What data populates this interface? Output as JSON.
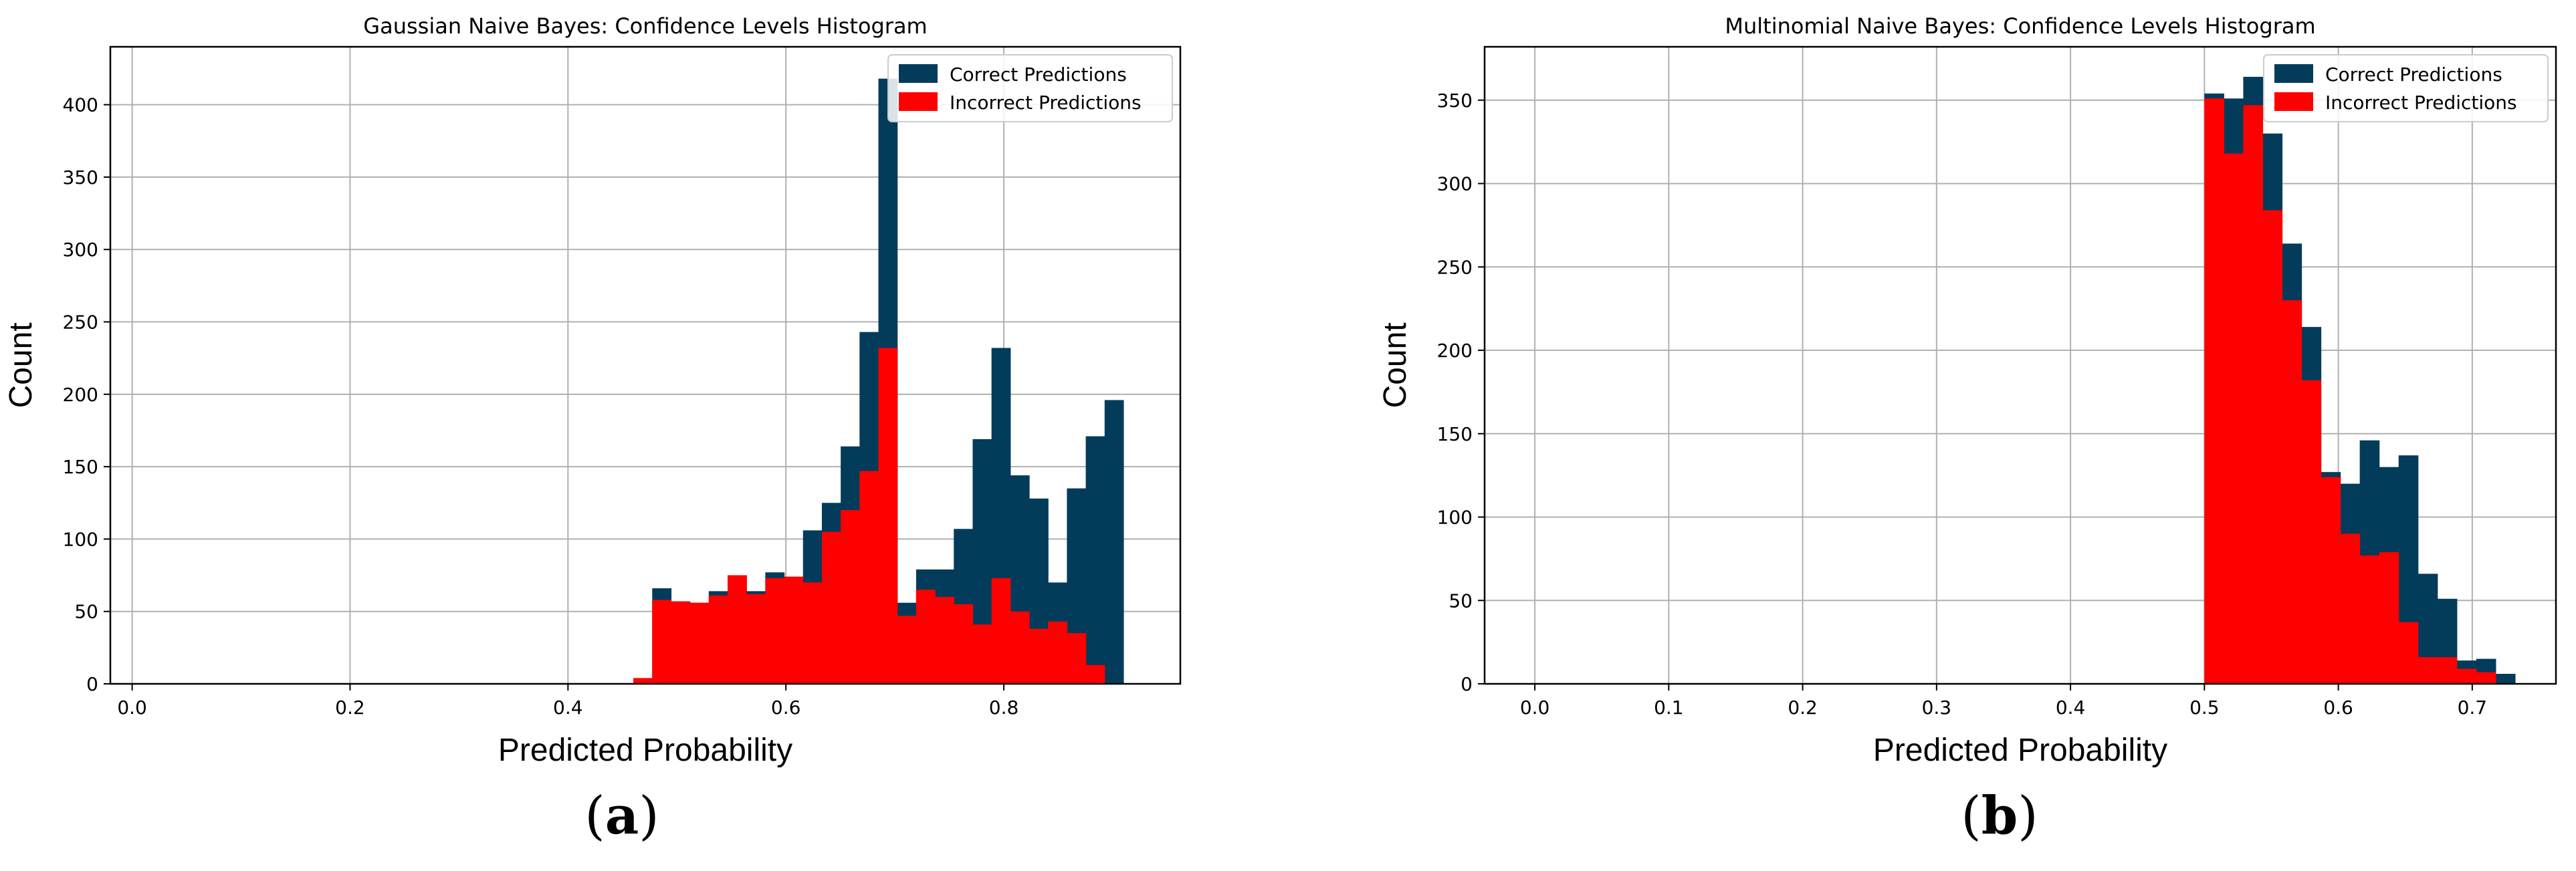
{
  "figure_labels": {
    "a": "a",
    "b": "b"
  },
  "colors": {
    "correct": "#033c5a",
    "incorrect": "#ff0000",
    "grid": "#b0b0b0",
    "axis": "#000000"
  },
  "chart_data": [
    {
      "type": "bar",
      "subtype": "histogram-overlay",
      "title": "Gaussian Naive Bayes: Confidence Levels Histogram",
      "xlabel": "Predicted Probability",
      "ylabel": "Count",
      "xlim": [
        -0.02,
        0.962
      ],
      "ylim": [
        0,
        440
      ],
      "xticks": [
        0.0,
        0.2,
        0.4,
        0.6,
        0.8
      ],
      "xtick_labels": [
        "0.0",
        "0.2",
        "0.4",
        "0.6",
        "0.8"
      ],
      "yticks": [
        0,
        50,
        100,
        150,
        200,
        250,
        300,
        350,
        400
      ],
      "ytick_labels": [
        "0",
        "50",
        "100",
        "150",
        "200",
        "250",
        "300",
        "350",
        "400"
      ],
      "grid": true,
      "legend_position": "top-right",
      "bin_start": 0.46,
      "bin_width": 0.0173,
      "series": [
        {
          "name": "Correct Predictions",
          "color": "#033c5a",
          "values": [
            0,
            66,
            57,
            56,
            64,
            75,
            64,
            77,
            74,
            106,
            125,
            164,
            243,
            418,
            56,
            79,
            79,
            107,
            169,
            232,
            144,
            128,
            70,
            135,
            171,
            196
          ]
        },
        {
          "name": "Incorrect Predictions",
          "color": "#ff0000",
          "values": [
            4,
            58,
            57,
            56,
            61,
            75,
            62,
            73,
            74,
            70,
            105,
            120,
            147,
            232,
            47,
            65,
            60,
            55,
            41,
            73,
            50,
            38,
            43,
            35,
            13,
            0
          ]
        }
      ]
    },
    {
      "type": "bar",
      "subtype": "histogram-overlay",
      "title": "Multinomial Naive Bayes: Confidence Levels Histogram",
      "xlabel": "Predicted Probability",
      "ylabel": "Count",
      "xlim": [
        -0.0375,
        0.7625
      ],
      "ylim": [
        0,
        382
      ],
      "xticks": [
        0.0,
        0.1,
        0.2,
        0.3,
        0.4,
        0.5,
        0.6,
        0.7
      ],
      "xtick_labels": [
        "0.0",
        "0.1",
        "0.2",
        "0.3",
        "0.4",
        "0.5",
        "0.6",
        "0.7"
      ],
      "yticks": [
        0,
        50,
        100,
        150,
        200,
        250,
        300,
        350
      ],
      "ytick_labels": [
        "0",
        "50",
        "100",
        "150",
        "200",
        "250",
        "300",
        "350"
      ],
      "grid": true,
      "legend_position": "top-right",
      "bin_start": 0.5,
      "bin_width": 0.0145,
      "series": [
        {
          "name": "Correct Predictions",
          "color": "#033c5a",
          "values": [
            354,
            351,
            364,
            330,
            264,
            214,
            127,
            120,
            146,
            130,
            137,
            66,
            51,
            14,
            15,
            6
          ]
        },
        {
          "name": "Incorrect Predictions",
          "color": "#ff0000",
          "values": [
            351,
            318,
            347,
            284,
            230,
            182,
            124,
            90,
            77,
            79,
            37,
            16,
            16,
            9,
            7,
            0
          ]
        }
      ]
    }
  ]
}
